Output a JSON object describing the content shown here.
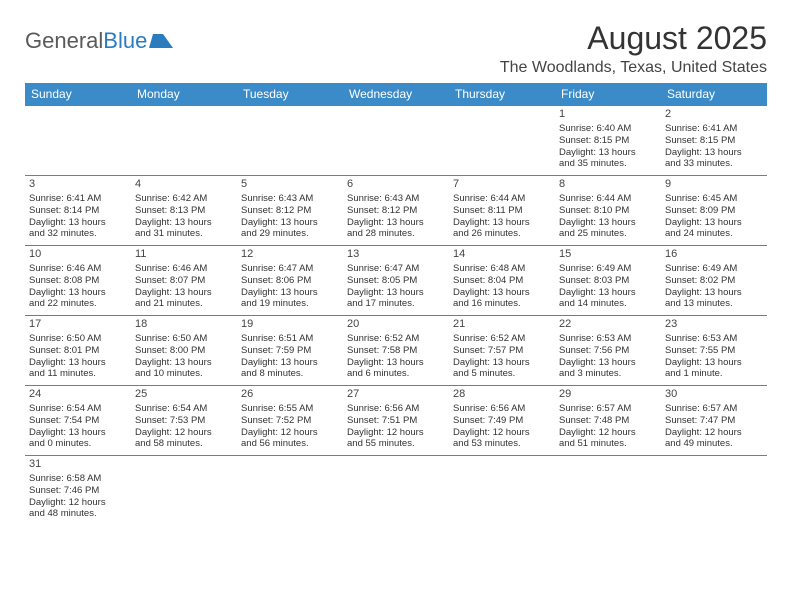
{
  "logo": {
    "text1": "General",
    "text2": "Blue"
  },
  "title": "August 2025",
  "location": "The Woodlands, Texas, United States",
  "colors": {
    "header_bg": "#3b8bc8",
    "header_fg": "#ffffff",
    "cell_border": "#3b8bc8",
    "title_color": "#333333",
    "logo_gray": "#5a5a5a",
    "logo_blue": "#2b7bbf"
  },
  "weekdays": [
    "Sunday",
    "Monday",
    "Tuesday",
    "Wednesday",
    "Thursday",
    "Friday",
    "Saturday"
  ],
  "weeks": [
    [
      null,
      null,
      null,
      null,
      null,
      {
        "n": "1",
        "sr": "Sunrise: 6:40 AM",
        "ss": "Sunset: 8:15 PM",
        "dl1": "Daylight: 13 hours",
        "dl2": "and 35 minutes."
      },
      {
        "n": "2",
        "sr": "Sunrise: 6:41 AM",
        "ss": "Sunset: 8:15 PM",
        "dl1": "Daylight: 13 hours",
        "dl2": "and 33 minutes."
      }
    ],
    [
      {
        "n": "3",
        "sr": "Sunrise: 6:41 AM",
        "ss": "Sunset: 8:14 PM",
        "dl1": "Daylight: 13 hours",
        "dl2": "and 32 minutes."
      },
      {
        "n": "4",
        "sr": "Sunrise: 6:42 AM",
        "ss": "Sunset: 8:13 PM",
        "dl1": "Daylight: 13 hours",
        "dl2": "and 31 minutes."
      },
      {
        "n": "5",
        "sr": "Sunrise: 6:43 AM",
        "ss": "Sunset: 8:12 PM",
        "dl1": "Daylight: 13 hours",
        "dl2": "and 29 minutes."
      },
      {
        "n": "6",
        "sr": "Sunrise: 6:43 AM",
        "ss": "Sunset: 8:12 PM",
        "dl1": "Daylight: 13 hours",
        "dl2": "and 28 minutes."
      },
      {
        "n": "7",
        "sr": "Sunrise: 6:44 AM",
        "ss": "Sunset: 8:11 PM",
        "dl1": "Daylight: 13 hours",
        "dl2": "and 26 minutes."
      },
      {
        "n": "8",
        "sr": "Sunrise: 6:44 AM",
        "ss": "Sunset: 8:10 PM",
        "dl1": "Daylight: 13 hours",
        "dl2": "and 25 minutes."
      },
      {
        "n": "9",
        "sr": "Sunrise: 6:45 AM",
        "ss": "Sunset: 8:09 PM",
        "dl1": "Daylight: 13 hours",
        "dl2": "and 24 minutes."
      }
    ],
    [
      {
        "n": "10",
        "sr": "Sunrise: 6:46 AM",
        "ss": "Sunset: 8:08 PM",
        "dl1": "Daylight: 13 hours",
        "dl2": "and 22 minutes."
      },
      {
        "n": "11",
        "sr": "Sunrise: 6:46 AM",
        "ss": "Sunset: 8:07 PM",
        "dl1": "Daylight: 13 hours",
        "dl2": "and 21 minutes."
      },
      {
        "n": "12",
        "sr": "Sunrise: 6:47 AM",
        "ss": "Sunset: 8:06 PM",
        "dl1": "Daylight: 13 hours",
        "dl2": "and 19 minutes."
      },
      {
        "n": "13",
        "sr": "Sunrise: 6:47 AM",
        "ss": "Sunset: 8:05 PM",
        "dl1": "Daylight: 13 hours",
        "dl2": "and 17 minutes."
      },
      {
        "n": "14",
        "sr": "Sunrise: 6:48 AM",
        "ss": "Sunset: 8:04 PM",
        "dl1": "Daylight: 13 hours",
        "dl2": "and 16 minutes."
      },
      {
        "n": "15",
        "sr": "Sunrise: 6:49 AM",
        "ss": "Sunset: 8:03 PM",
        "dl1": "Daylight: 13 hours",
        "dl2": "and 14 minutes."
      },
      {
        "n": "16",
        "sr": "Sunrise: 6:49 AM",
        "ss": "Sunset: 8:02 PM",
        "dl1": "Daylight: 13 hours",
        "dl2": "and 13 minutes."
      }
    ],
    [
      {
        "n": "17",
        "sr": "Sunrise: 6:50 AM",
        "ss": "Sunset: 8:01 PM",
        "dl1": "Daylight: 13 hours",
        "dl2": "and 11 minutes."
      },
      {
        "n": "18",
        "sr": "Sunrise: 6:50 AM",
        "ss": "Sunset: 8:00 PM",
        "dl1": "Daylight: 13 hours",
        "dl2": "and 10 minutes."
      },
      {
        "n": "19",
        "sr": "Sunrise: 6:51 AM",
        "ss": "Sunset: 7:59 PM",
        "dl1": "Daylight: 13 hours",
        "dl2": "and 8 minutes."
      },
      {
        "n": "20",
        "sr": "Sunrise: 6:52 AM",
        "ss": "Sunset: 7:58 PM",
        "dl1": "Daylight: 13 hours",
        "dl2": "and 6 minutes."
      },
      {
        "n": "21",
        "sr": "Sunrise: 6:52 AM",
        "ss": "Sunset: 7:57 PM",
        "dl1": "Daylight: 13 hours",
        "dl2": "and 5 minutes."
      },
      {
        "n": "22",
        "sr": "Sunrise: 6:53 AM",
        "ss": "Sunset: 7:56 PM",
        "dl1": "Daylight: 13 hours",
        "dl2": "and 3 minutes."
      },
      {
        "n": "23",
        "sr": "Sunrise: 6:53 AM",
        "ss": "Sunset: 7:55 PM",
        "dl1": "Daylight: 13 hours",
        "dl2": "and 1 minute."
      }
    ],
    [
      {
        "n": "24",
        "sr": "Sunrise: 6:54 AM",
        "ss": "Sunset: 7:54 PM",
        "dl1": "Daylight: 13 hours",
        "dl2": "and 0 minutes."
      },
      {
        "n": "25",
        "sr": "Sunrise: 6:54 AM",
        "ss": "Sunset: 7:53 PM",
        "dl1": "Daylight: 12 hours",
        "dl2": "and 58 minutes."
      },
      {
        "n": "26",
        "sr": "Sunrise: 6:55 AM",
        "ss": "Sunset: 7:52 PM",
        "dl1": "Daylight: 12 hours",
        "dl2": "and 56 minutes."
      },
      {
        "n": "27",
        "sr": "Sunrise: 6:56 AM",
        "ss": "Sunset: 7:51 PM",
        "dl1": "Daylight: 12 hours",
        "dl2": "and 55 minutes."
      },
      {
        "n": "28",
        "sr": "Sunrise: 6:56 AM",
        "ss": "Sunset: 7:49 PM",
        "dl1": "Daylight: 12 hours",
        "dl2": "and 53 minutes."
      },
      {
        "n": "29",
        "sr": "Sunrise: 6:57 AM",
        "ss": "Sunset: 7:48 PM",
        "dl1": "Daylight: 12 hours",
        "dl2": "and 51 minutes."
      },
      {
        "n": "30",
        "sr": "Sunrise: 6:57 AM",
        "ss": "Sunset: 7:47 PM",
        "dl1": "Daylight: 12 hours",
        "dl2": "and 49 minutes."
      }
    ],
    [
      {
        "n": "31",
        "sr": "Sunrise: 6:58 AM",
        "ss": "Sunset: 7:46 PM",
        "dl1": "Daylight: 12 hours",
        "dl2": "and 48 minutes."
      },
      null,
      null,
      null,
      null,
      null,
      null
    ]
  ]
}
